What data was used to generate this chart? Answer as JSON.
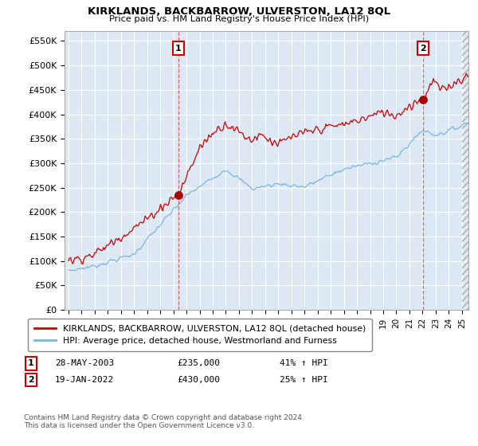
{
  "title": "KIRKLANDS, BACKBARROW, ULVERSTON, LA12 8QL",
  "subtitle": "Price paid vs. HM Land Registry's House Price Index (HPI)",
  "ylim": [
    0,
    570000
  ],
  "yticks": [
    0,
    50000,
    100000,
    150000,
    200000,
    250000,
    300000,
    350000,
    400000,
    450000,
    500000,
    550000
  ],
  "ytick_labels": [
    "£0",
    "£50K",
    "£100K",
    "£150K",
    "£200K",
    "£250K",
    "£300K",
    "£350K",
    "£400K",
    "£450K",
    "£500K",
    "£550K"
  ],
  "xlim_start": 1994.7,
  "xlim_end": 2025.5,
  "hpi_line_color": "#7ab5e0",
  "price_line_color": "#cc0000",
  "dot_color": "#aa0000",
  "sale1_x": 2003.38,
  "sale1_y": 235000,
  "sale1_date": "28-MAY-2003",
  "sale1_amount": "£235,000",
  "sale1_hpi": "41% ↑ HPI",
  "sale2_x": 2022.05,
  "sale2_y": 430000,
  "sale2_date": "19-JAN-2022",
  "sale2_amount": "£430,000",
  "sale2_hpi": "25% ↑ HPI",
  "legend_label1": "KIRKLANDS, BACKBARROW, ULVERSTON, LA12 8QL (detached house)",
  "legend_label2": "HPI: Average price, detached house, Westmorland and Furness",
  "footer": "Contains HM Land Registry data © Crown copyright and database right 2024.\nThis data is licensed under the Open Government Licence v3.0.",
  "chart_bg_color": "#dce9f5",
  "background_color": "#ffffff",
  "grid_color": "#ffffff"
}
